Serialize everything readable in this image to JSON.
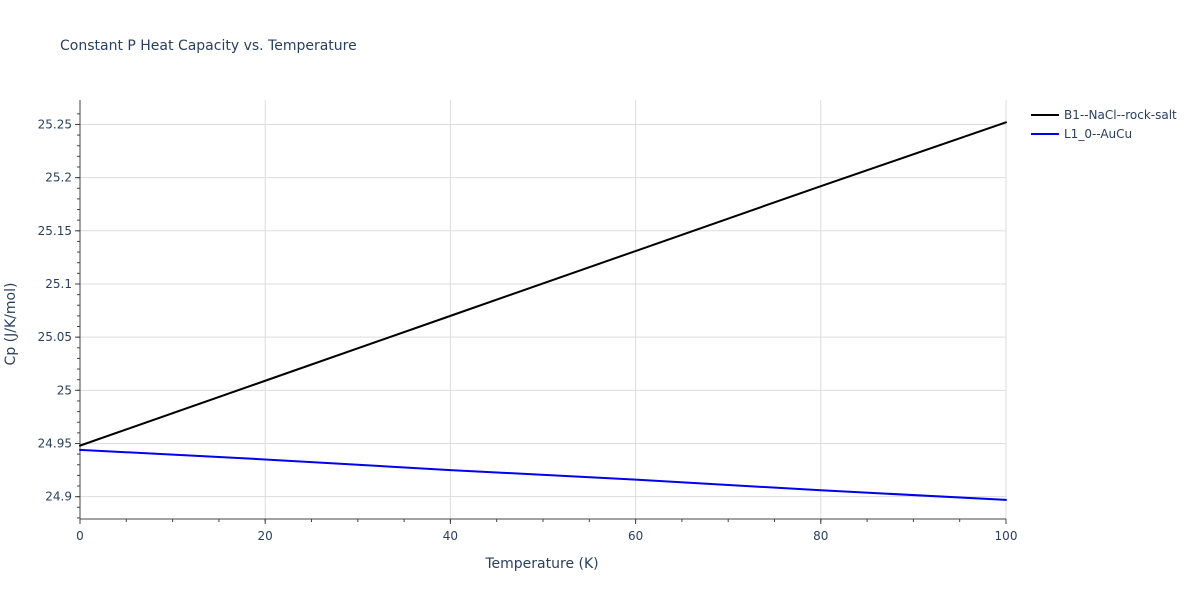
{
  "chart_data": {
    "type": "line",
    "title": "Constant P Heat Capacity vs. Temperature",
    "xlabel": "Temperature (K)",
    "ylabel": "Cp (J/K/mol)",
    "xlim": [
      0,
      100
    ],
    "ylim": [
      24.879,
      25.273
    ],
    "x_ticks": [
      0,
      20,
      40,
      60,
      80,
      100
    ],
    "x_tick_labels": [
      "0",
      "20",
      "40",
      "60",
      "80",
      "100"
    ],
    "y_ticks": [
      24.9,
      24.95,
      25.0,
      25.05,
      25.1,
      25.15,
      25.2,
      25.25
    ],
    "y_tick_labels": [
      "24.9",
      "24.95",
      "25",
      "25.05",
      "25.1",
      "25.15",
      "25.2",
      "25.25"
    ],
    "grid": true,
    "legend_position": "right",
    "series": [
      {
        "name": "B1--NaCl--rock-salt",
        "color": "#000000",
        "x": [
          0,
          20,
          40,
          60,
          80,
          100
        ],
        "y": [
          24.948,
          25.009,
          25.07,
          25.131,
          25.192,
          25.252
        ]
      },
      {
        "name": "L1_0--AuCu",
        "color": "#0000ee",
        "x": [
          0,
          20,
          40,
          60,
          80,
          100
        ],
        "y": [
          24.944,
          24.935,
          24.925,
          24.916,
          24.906,
          24.897
        ]
      }
    ]
  }
}
